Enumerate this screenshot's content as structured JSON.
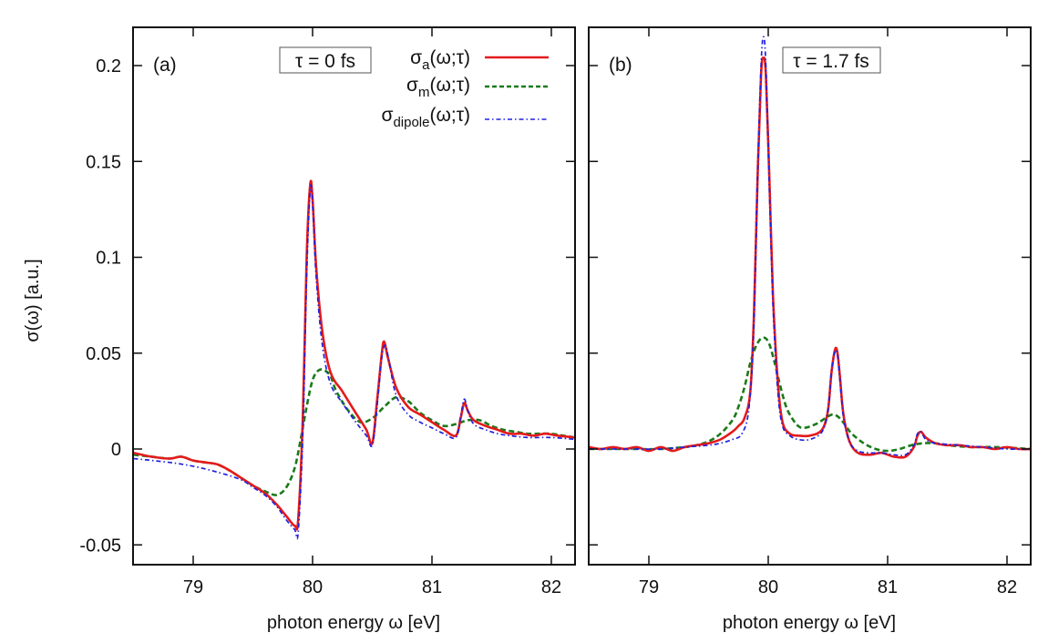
{
  "chart_data": [
    {
      "type": "line",
      "panel_label": "(a)",
      "annotation": "τ = 0 fs",
      "xlabel": "photon energy ω [eV]",
      "ylabel": "σ(ω) [a.u.]",
      "xlim": [
        78.5,
        82.2
      ],
      "ylim": [
        -0.06,
        0.22
      ],
      "xticks": [
        79,
        80,
        81,
        82
      ],
      "xtick_labels": [
        "79",
        "80",
        "81",
        "82"
      ],
      "yticks": [
        -0.05,
        0,
        0.05,
        0.1,
        0.15,
        0.2
      ],
      "ytick_labels": [
        "-0.05",
        "0",
        "0.05",
        "0.1",
        "0.15",
        "0.2"
      ],
      "grid": false,
      "legend_position": "top-right",
      "series": [
        {
          "name": "σa(ω;τ)",
          "name_base": "σ",
          "name_sub": "a",
          "name_tail": "(ω;τ)",
          "color": "#e41a1c",
          "style": "solid",
          "x": [
            78.5,
            78.65,
            78.8,
            78.9,
            79.0,
            79.1,
            79.2,
            79.3,
            79.4,
            79.5,
            79.6,
            79.7,
            79.78,
            79.85,
            79.88,
            79.92,
            79.95,
            79.98,
            80.0,
            80.03,
            80.08,
            80.15,
            80.25,
            80.35,
            80.45,
            80.5,
            80.54,
            80.58,
            80.6,
            80.63,
            80.7,
            80.8,
            80.9,
            81.0,
            81.1,
            81.2,
            81.24,
            81.27,
            81.3,
            81.35,
            81.45,
            81.55,
            81.65,
            81.75,
            81.85,
            81.95,
            82.05,
            82.2
          ],
          "y": [
            -0.002,
            -0.004,
            -0.005,
            -0.004,
            -0.006,
            -0.007,
            -0.008,
            -0.011,
            -0.015,
            -0.019,
            -0.023,
            -0.029,
            -0.035,
            -0.04,
            -0.036,
            0.02,
            0.1,
            0.138,
            0.13,
            0.095,
            0.062,
            0.04,
            0.03,
            0.02,
            0.01,
            0.003,
            0.025,
            0.05,
            0.056,
            0.048,
            0.032,
            0.022,
            0.018,
            0.014,
            0.01,
            0.007,
            0.016,
            0.024,
            0.02,
            0.015,
            0.012,
            0.01,
            0.008,
            0.008,
            0.007,
            0.008,
            0.007,
            0.006
          ]
        },
        {
          "name": "σm(ω;τ)",
          "name_base": "σ",
          "name_sub": "m",
          "name_tail": "(ω;τ)",
          "color": "#1a7a1a",
          "style": "dashed",
          "x": [
            78.5,
            78.65,
            78.8,
            78.9,
            79.0,
            79.1,
            79.2,
            79.3,
            79.4,
            79.5,
            79.6,
            79.7,
            79.78,
            79.85,
            79.9,
            79.95,
            80.0,
            80.05,
            80.1,
            80.15,
            80.2,
            80.3,
            80.4,
            80.5,
            80.6,
            80.7,
            80.8,
            80.9,
            81.0,
            81.1,
            81.2,
            81.3,
            81.4,
            81.5,
            81.6,
            81.7,
            81.8,
            81.9,
            82.0,
            82.1,
            82.2
          ],
          "y": [
            -0.003,
            -0.004,
            -0.005,
            -0.004,
            -0.006,
            -0.007,
            -0.008,
            -0.011,
            -0.015,
            -0.019,
            -0.022,
            -0.024,
            -0.02,
            -0.01,
            0.005,
            0.022,
            0.036,
            0.041,
            0.041,
            0.038,
            0.03,
            0.02,
            0.014,
            0.016,
            0.022,
            0.027,
            0.025,
            0.019,
            0.015,
            0.012,
            0.013,
            0.015,
            0.015,
            0.012,
            0.01,
            0.009,
            0.008,
            0.008,
            0.008,
            0.007,
            0.006
          ]
        },
        {
          "name": "σdipole(ω;τ)",
          "name_base": "σ",
          "name_sub": "dipole",
          "name_tail": "(ω;τ)",
          "color": "#2020e0",
          "style": "dashdot",
          "x": [
            78.5,
            78.8,
            79.0,
            79.2,
            79.4,
            79.5,
            79.6,
            79.7,
            79.78,
            79.85,
            79.88,
            79.92,
            79.95,
            79.98,
            80.0,
            80.03,
            80.08,
            80.15,
            80.25,
            80.35,
            80.45,
            80.5,
            80.54,
            80.58,
            80.61,
            80.64,
            80.7,
            80.8,
            80.9,
            81.0,
            81.1,
            81.2,
            81.24,
            81.27,
            81.3,
            81.35,
            81.45,
            81.55,
            81.65,
            81.8,
            82.0,
            82.2
          ],
          "y": [
            -0.005,
            -0.007,
            -0.009,
            -0.012,
            -0.016,
            -0.02,
            -0.024,
            -0.03,
            -0.037,
            -0.042,
            -0.043,
            0.01,
            0.09,
            0.135,
            0.128,
            0.09,
            0.055,
            0.034,
            0.024,
            0.015,
            0.007,
            0.002,
            0.022,
            0.048,
            0.054,
            0.046,
            0.028,
            0.018,
            0.014,
            0.011,
            0.008,
            0.006,
            0.017,
            0.026,
            0.02,
            0.013,
            0.01,
            0.008,
            0.007,
            0.006,
            0.006,
            0.005
          ]
        }
      ]
    },
    {
      "type": "line",
      "panel_label": "(b)",
      "annotation": "τ = 1.7 fs",
      "xlabel": "photon energy ω [eV]",
      "xlim": [
        78.5,
        82.2
      ],
      "ylim": [
        -0.06,
        0.22
      ],
      "xticks": [
        79,
        80,
        81,
        82
      ],
      "xtick_labels": [
        "79",
        "80",
        "81",
        "82"
      ],
      "yticks": [
        -0.05,
        0,
        0.05,
        0.1,
        0.15,
        0.2
      ],
      "grid": false,
      "series": [
        {
          "name": "σa(ω;τ)",
          "color": "#e41a1c",
          "style": "solid",
          "x": [
            78.5,
            78.6,
            78.7,
            78.8,
            78.9,
            79.0,
            79.1,
            79.2,
            79.3,
            79.4,
            79.5,
            79.6,
            79.7,
            79.75,
            79.8,
            79.85,
            79.88,
            79.91,
            79.94,
            79.96,
            79.98,
            80.01,
            80.04,
            80.08,
            80.12,
            80.18,
            80.25,
            80.35,
            80.45,
            80.5,
            80.53,
            80.56,
            80.58,
            80.6,
            80.63,
            80.68,
            80.75,
            80.85,
            80.95,
            81.05,
            81.15,
            81.22,
            81.25,
            81.28,
            81.32,
            81.4,
            81.5,
            81.6,
            81.7,
            81.8,
            81.9,
            82.0,
            82.1,
            82.2
          ],
          "y": [
            0.001,
            0.0,
            0.001,
            0.0,
            0.001,
            -0.001,
            0.001,
            -0.001,
            0.001,
            0.002,
            0.003,
            0.005,
            0.009,
            0.012,
            0.016,
            0.03,
            0.07,
            0.14,
            0.195,
            0.204,
            0.195,
            0.14,
            0.08,
            0.035,
            0.014,
            0.008,
            0.007,
            0.007,
            0.01,
            0.02,
            0.04,
            0.052,
            0.05,
            0.038,
            0.018,
            0.004,
            -0.002,
            -0.003,
            -0.002,
            -0.004,
            -0.004,
            0.001,
            0.007,
            0.009,
            0.006,
            0.003,
            0.002,
            0.002,
            0.001,
            0.001,
            0.0,
            0.001,
            0.0,
            0.0
          ]
        },
        {
          "name": "σm(ω;τ)",
          "color": "#1a7a1a",
          "style": "dashed",
          "x": [
            78.5,
            78.7,
            78.9,
            79.1,
            79.3,
            79.4,
            79.5,
            79.6,
            79.7,
            79.75,
            79.8,
            79.85,
            79.9,
            79.95,
            80.0,
            80.05,
            80.1,
            80.15,
            80.2,
            80.25,
            80.3,
            80.4,
            80.5,
            80.55,
            80.6,
            80.65,
            80.7,
            80.8,
            80.9,
            81.0,
            81.1,
            81.2,
            81.3,
            81.4,
            81.5,
            81.7,
            81.9,
            82.2
          ],
          "y": [
            0.0,
            0.0,
            0.0,
            0.0,
            0.001,
            0.002,
            0.004,
            0.008,
            0.015,
            0.022,
            0.032,
            0.045,
            0.054,
            0.058,
            0.056,
            0.046,
            0.033,
            0.022,
            0.016,
            0.012,
            0.011,
            0.013,
            0.017,
            0.018,
            0.016,
            0.012,
            0.008,
            0.003,
            0.0,
            -0.001,
            0.0,
            0.002,
            0.003,
            0.003,
            0.002,
            0.001,
            0.001,
            0.0
          ]
        },
        {
          "name": "σdipole(ω;τ)",
          "color": "#2020e0",
          "style": "dashdot",
          "x": [
            78.5,
            78.7,
            78.9,
            79.1,
            79.3,
            79.5,
            79.6,
            79.7,
            79.78,
            79.84,
            79.88,
            79.91,
            79.94,
            79.96,
            79.98,
            80.01,
            80.04,
            80.08,
            80.12,
            80.18,
            80.25,
            80.35,
            80.45,
            80.5,
            80.53,
            80.56,
            80.58,
            80.6,
            80.63,
            80.68,
            80.75,
            80.85,
            80.95,
            81.05,
            81.15,
            81.22,
            81.25,
            81.28,
            81.32,
            81.4,
            81.6,
            81.8,
            82.0,
            82.2
          ],
          "y": [
            0.0,
            0.0,
            0.0,
            0.0,
            0.001,
            0.002,
            0.003,
            0.005,
            0.008,
            0.022,
            0.065,
            0.14,
            0.2,
            0.215,
            0.2,
            0.135,
            0.075,
            0.03,
            0.012,
            0.007,
            0.005,
            0.005,
            0.009,
            0.02,
            0.04,
            0.051,
            0.049,
            0.036,
            0.017,
            0.004,
            -0.001,
            -0.002,
            -0.002,
            -0.003,
            -0.003,
            0.002,
            0.008,
            0.009,
            0.005,
            0.003,
            0.002,
            0.001,
            0.0,
            0.0
          ]
        }
      ]
    }
  ]
}
